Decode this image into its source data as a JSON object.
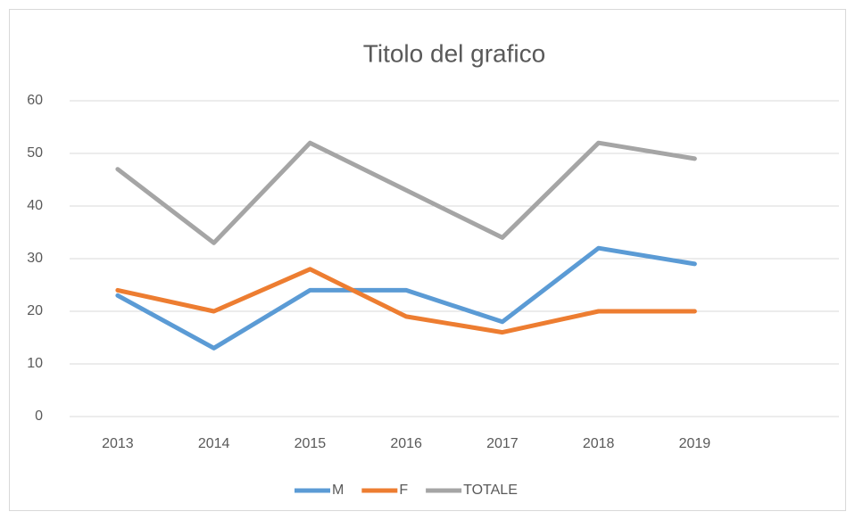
{
  "chart_data": {
    "type": "line",
    "title": "Titolo del grafico",
    "categories": [
      "2013",
      "2014",
      "2015",
      "2016",
      "2017",
      "2018",
      "2019",
      null
    ],
    "series": [
      {
        "name": "M",
        "color": "#5b9bd5",
        "values": [
          23,
          13,
          24,
          24,
          18,
          32,
          29,
          null
        ]
      },
      {
        "name": "F",
        "color": "#ed7d31",
        "values": [
          24,
          20,
          28,
          19,
          16,
          20,
          20,
          null
        ]
      },
      {
        "name": "TOTALE",
        "color": "#a5a5a5",
        "values": [
          47,
          33,
          52,
          43,
          34,
          52,
          49,
          null
        ]
      }
    ],
    "ylim": [
      0,
      60
    ],
    "yticks": [
      0,
      10,
      20,
      30,
      40,
      50,
      60
    ],
    "grid": true,
    "legend": "bottom"
  }
}
